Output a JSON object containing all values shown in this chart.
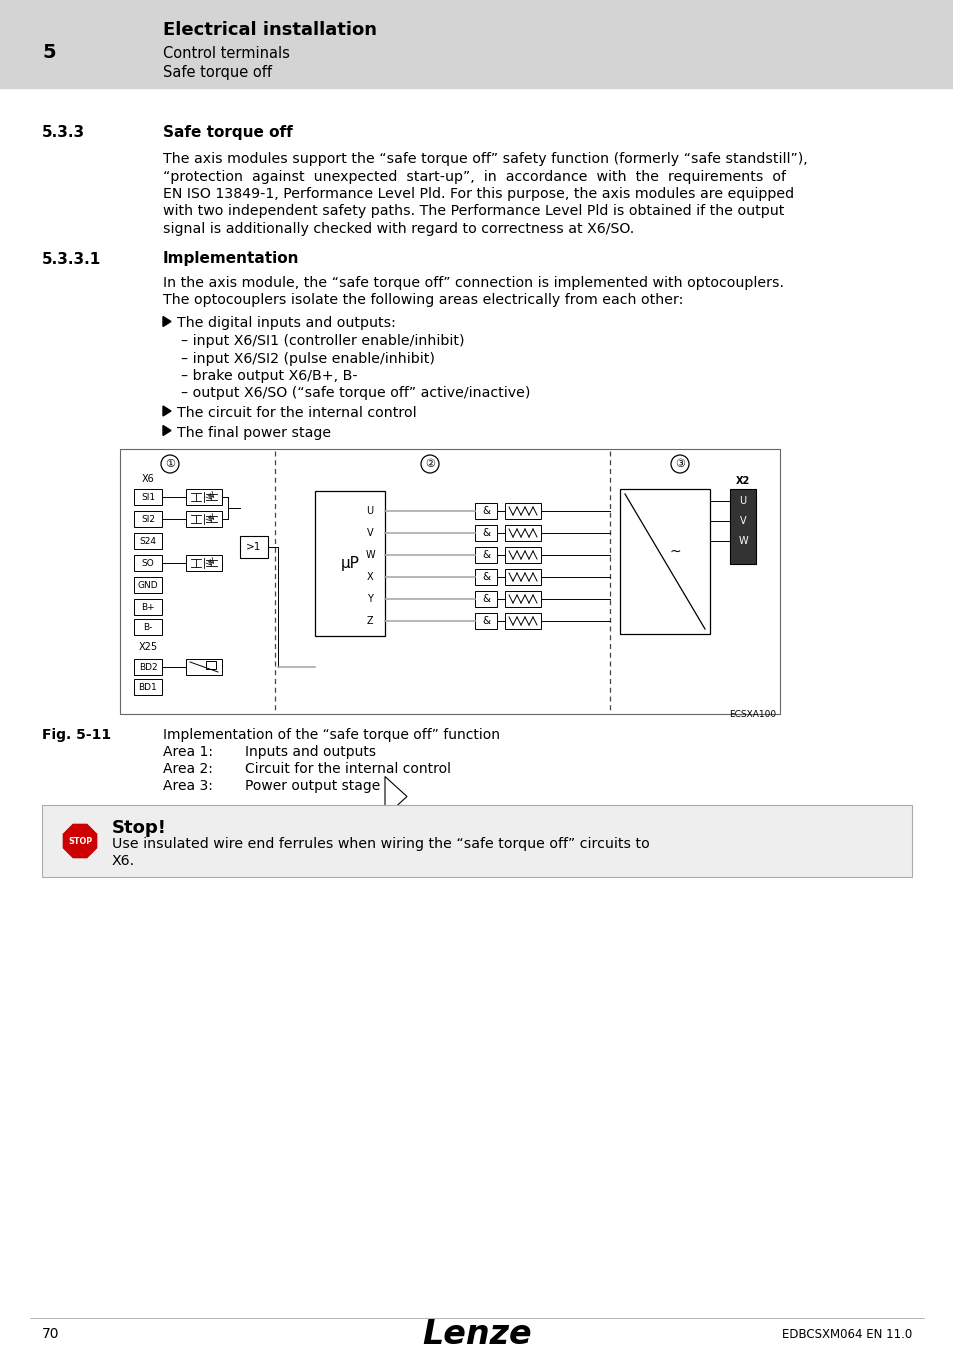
{
  "page_bg": "#ffffff",
  "header_bg": "#d4d4d4",
  "header_number": "5",
  "header_title": "Electrical installation",
  "header_sub1": "Control terminals",
  "header_sub2": "Safe torque off",
  "section_533": "5.3.3",
  "section_533_title": "Safe torque off",
  "section_5331": "5.3.3.1",
  "section_5331_title": "Implementation",
  "para1_line1": "The axis modules support the “safe torque off” safety function (formerly “safe standstill”),",
  "para1_line2": "“protection  against  unexpected  start-up”,  in  accordance  with  the  requirements  of",
  "para1_line3": "EN ISO 13849-1, Performance Level Pld. For this purpose, the axis modules are equipped",
  "para1_line4": "with two independent safety paths. The Performance Level Pld is obtained if the output",
  "para1_line5": "signal is additionally checked with regard to correctness at X6/SO.",
  "para2_line1": "In the axis module, the “safe torque off” connection is implemented with optocouplers.",
  "para2_line2": "The optocouplers isolate the following areas electrically from each other:",
  "bullet1": "The digital inputs and outputs:",
  "bullet1_sub1": "– input X6/SI1 (controller enable/inhibit)",
  "bullet1_sub2": "– input X6/SI2 (pulse enable/inhibit)",
  "bullet1_sub3": "– brake output X6/B+, B-",
  "bullet1_sub4": "– output X6/SO (“safe torque off” active/inactive)",
  "bullet2": "The circuit for the internal control",
  "bullet3": "The final power stage",
  "fig_caption": "Fig. 5-11",
  "fig_caption_text": "Implementation of the “safe torque off” function",
  "area1_label": "Area 1:",
  "area1_text": "Inputs and outputs",
  "area2_label": "Area 2:",
  "area2_text": "Circuit for the internal control",
  "area3_label": "Area 3:",
  "area3_text": "Power output stage",
  "stop_title": "Stop!",
  "stop_line1": "Use insulated wire end ferrules when wiring the “safe torque off” circuits to",
  "stop_line2": "X6.",
  "footer_page": "70",
  "footer_brand": "Lenze",
  "footer_doc": "EDBCSXM064 EN 11.0",
  "fig_id": "ECSXA100",
  "text_color": "#000000",
  "border_color": "#000000",
  "dashed_color": "#555555",
  "gray_line_color": "#888888"
}
